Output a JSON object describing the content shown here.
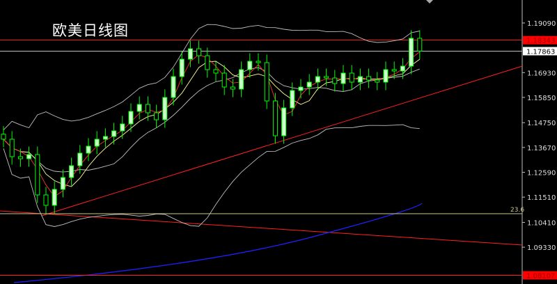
{
  "title": "欧美日线图",
  "chart_data": {
    "type": "candlestick",
    "title": "欧美日线图",
    "ylim": [
      1.08,
      1.2015
    ],
    "y_ticks": [
      "1.19090",
      "1.16930",
      "1.15850",
      "1.14750",
      "1.13670",
      "1.12590",
      "1.11510",
      "1.10410",
      "1.09330"
    ],
    "closes": [
      1.1403,
      1.13272,
      1.13181,
      1.13363,
      1.11606,
      1.11151,
      1.11848,
      1.12363,
      1.12878,
      1.13424,
      1.13727,
      1.1403,
      1.14151,
      1.14393,
      1.14696,
      1.15242,
      1.15545,
      1.15181,
      1.14878,
      1.15848,
      1.16757,
      1.17514,
      1.17969,
      1.17666,
      1.1706,
      1.16908,
      1.16302,
      1.16211,
      1.1706,
      1.17423,
      1.17363,
      1.15696,
      1.14181,
      1.15393,
      1.16151,
      1.16302,
      1.16514,
      1.16757,
      1.16696,
      1.16454,
      1.16908,
      1.16514,
      1.16757,
      1.16605,
      1.16514,
      1.1706,
      1.16999,
      1.17211,
      1.18423,
      1.17863
    ],
    "first_open": 1.1425,
    "levels": [
      {
        "label": "1.18343",
        "price": 1.18343,
        "color": "#ff2020",
        "tag": "red"
      },
      {
        "label": "1.17863",
        "price": 1.17863,
        "color": "#c0c0c0",
        "tag": "white"
      },
      {
        "label": "23.6",
        "price": 1.10788,
        "color": "#c8c890",
        "tag": "fib"
      },
      {
        "label": "1.08107",
        "price": 1.08107,
        "color": "#ff2020",
        "tag": "red"
      }
    ],
    "colors": {
      "up": "#ccffcc",
      "down": "#000000",
      "candle_outline": "#00ff00",
      "ma_fast": "#ff3030",
      "ma_slow": "#ffff99",
      "bands": "#c0c0c0",
      "long_ma": "#2020ff",
      "trendline": "#ff2020",
      "axis": "#c0c0c0"
    }
  }
}
